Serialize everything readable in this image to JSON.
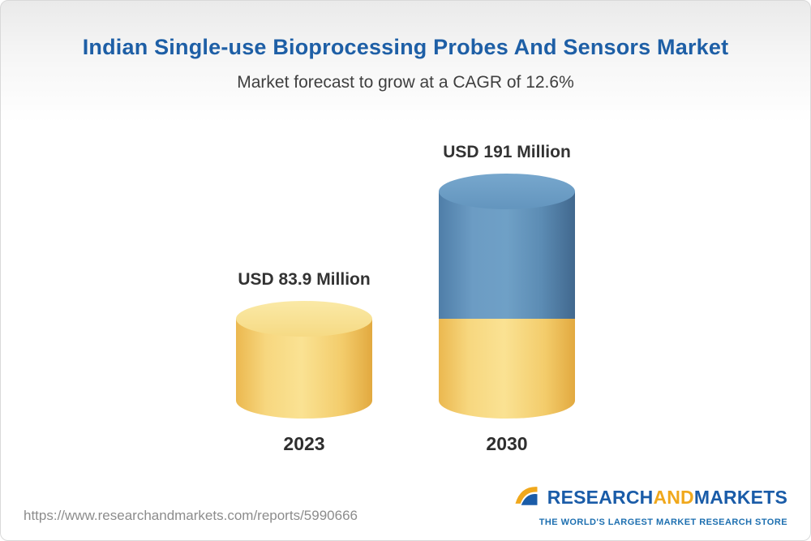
{
  "chart_data": {
    "type": "bar",
    "subtype": "3d-cylinder",
    "title": "Indian Single-use Bioprocessing Probes And Sensors Market",
    "subtitle": "Market forecast to grow at a CAGR of 12.6%",
    "cagr_percent": 12.6,
    "unit": "USD Million",
    "categories": [
      "2023",
      "2030"
    ],
    "values": [
      83.9,
      191
    ],
    "value_labels": [
      "USD 83.9 Million",
      "USD 191 Million"
    ],
    "ylim": [
      0,
      200
    ],
    "grid": false,
    "legend": "none",
    "colors": {
      "base_segment_gold": "#F3CC6B",
      "growth_segment_blue": "#5E90B8",
      "title_blue": "#1E5FA6"
    },
    "stacks": [
      [
        {
          "color": "gold",
          "value": 83.9
        }
      ],
      [
        {
          "color": "gold",
          "value": 83.9
        },
        {
          "color": "blue",
          "value": 107.1
        }
      ]
    ]
  },
  "footer": {
    "url": "https://www.researchandmarkets.com/reports/5990666",
    "logo": {
      "part1": "RESEARCH",
      "part2": "AND",
      "part3": "MARKETS",
      "tagline": "THE WORLD'S LARGEST MARKET RESEARCH STORE"
    }
  }
}
